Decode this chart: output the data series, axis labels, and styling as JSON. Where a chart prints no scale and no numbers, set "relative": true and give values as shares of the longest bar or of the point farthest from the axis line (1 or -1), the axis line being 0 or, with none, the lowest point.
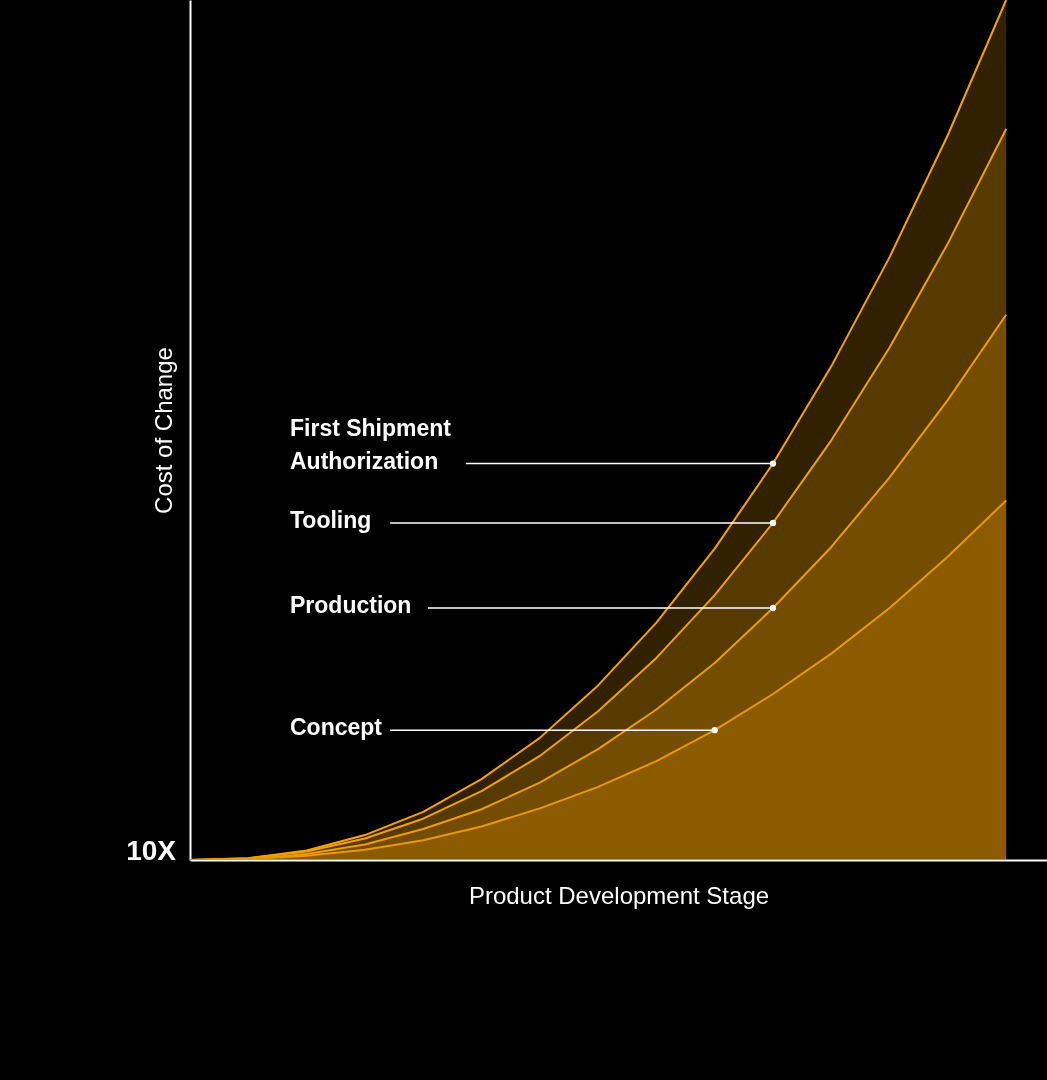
{
  "chart_data": {
    "type": "area",
    "relative": true,
    "xlabel": "Product Development Stage",
    "ylabel": "Cost of Change",
    "annotations": [
      "10X"
    ],
    "grid": false,
    "categories": [
      null,
      null,
      null,
      null,
      null,
      null,
      null,
      null,
      null,
      null,
      null,
      null,
      null,
      null,
      null
    ],
    "series": [
      {
        "name": "First Shipment Authorization",
        "color": "#f5a300",
        "values": [
          0,
          0.002,
          0.011,
          0.029,
          0.056,
          0.094,
          0.142,
          0.203,
          0.276,
          0.362,
          0.461,
          0.574,
          0.701,
          0.843,
          1
        ]
      },
      {
        "name": "Tooling",
        "color": "#f2a000",
        "values": [
          0,
          0.002,
          0.01,
          0.025,
          0.048,
          0.08,
          0.121,
          0.173,
          0.235,
          0.308,
          0.392,
          0.488,
          0.596,
          0.717,
          0.85
        ]
      },
      {
        "name": "Production",
        "color": "#ee9c00",
        "values": [
          0,
          0.001,
          0.007,
          0.018,
          0.036,
          0.059,
          0.09,
          0.129,
          0.175,
          0.229,
          0.293,
          0.364,
          0.445,
          0.535,
          0.634
        ]
      },
      {
        "name": "Concept",
        "color": "#ea9800",
        "values": [
          0,
          0.001,
          0.005,
          0.012,
          0.023,
          0.039,
          0.06,
          0.085,
          0.115,
          0.151,
          0.193,
          0.24,
          0.293,
          0.353,
          0.418
        ]
      }
    ]
  }
}
